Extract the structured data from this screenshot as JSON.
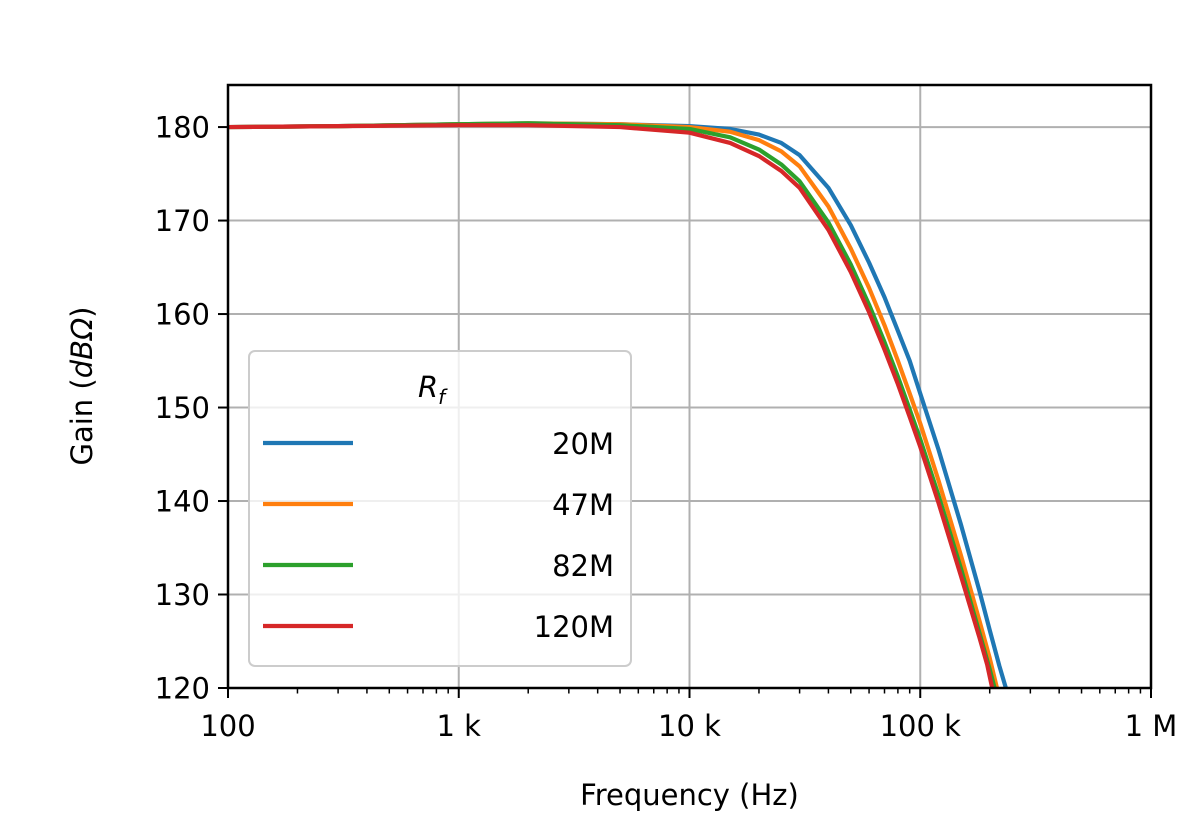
{
  "chart_data": {
    "type": "line",
    "xlabel": "Frequency (Hz)",
    "ylabel_prefix": "Gain (",
    "ylabel_unit": "dBΩ",
    "ylabel_suffix": ")",
    "x_scale": "log",
    "xlim": [
      100,
      1000000
    ],
    "ylim": [
      120,
      184.5
    ],
    "x_ticks": [
      {
        "value": 100,
        "label": "100"
      },
      {
        "value": 1000,
        "label": "1 k"
      },
      {
        "value": 10000,
        "label": "10 k"
      },
      {
        "value": 100000,
        "label": "100 k"
      },
      {
        "value": 1000000,
        "label": "1 M"
      }
    ],
    "y_ticks": [
      120,
      130,
      140,
      150,
      160,
      170,
      180
    ],
    "grid": true,
    "legend": {
      "title_main": "R",
      "title_sub": "f",
      "placement": "lower-left"
    },
    "series": [
      {
        "name": "20M",
        "color": "#1f77b4",
        "points": [
          [
            100,
            180
          ],
          [
            300,
            180.1
          ],
          [
            1000,
            180.3
          ],
          [
            2000,
            180.4
          ],
          [
            5000,
            180.3
          ],
          [
            10000,
            180.1
          ],
          [
            15000,
            179.8
          ],
          [
            20000,
            179.2
          ],
          [
            25000,
            178.3
          ],
          [
            30000,
            177
          ],
          [
            40000,
            173.5
          ],
          [
            50000,
            169.5
          ],
          [
            60000,
            165.5
          ],
          [
            70000,
            161.8
          ],
          [
            80000,
            158.2
          ],
          [
            90000,
            155
          ],
          [
            100000,
            151.5
          ],
          [
            120000,
            145.5
          ],
          [
            150000,
            137.5
          ],
          [
            180000,
            130.5
          ],
          [
            200000,
            126.2
          ],
          [
            220000,
            122.4
          ],
          [
            235000,
            120
          ]
        ]
      },
      {
        "name": "47M",
        "color": "#ff7f0e",
        "points": [
          [
            100,
            180
          ],
          [
            300,
            180.1
          ],
          [
            1000,
            180.3
          ],
          [
            2000,
            180.4
          ],
          [
            5000,
            180.3
          ],
          [
            10000,
            180
          ],
          [
            15000,
            179.5
          ],
          [
            20000,
            178.6
          ],
          [
            25000,
            177.4
          ],
          [
            30000,
            175.8
          ],
          [
            40000,
            171.5
          ],
          [
            50000,
            167
          ],
          [
            60000,
            162.8
          ],
          [
            70000,
            158.8
          ],
          [
            80000,
            155
          ],
          [
            90000,
            151.5
          ],
          [
            100000,
            148.3
          ],
          [
            120000,
            142.2
          ],
          [
            150000,
            134.2
          ],
          [
            180000,
            127.3
          ],
          [
            200000,
            123.2
          ],
          [
            215000,
            120
          ]
        ]
      },
      {
        "name": "82M",
        "color": "#2ca02c",
        "points": [
          [
            100,
            180
          ],
          [
            300,
            180.1
          ],
          [
            1000,
            180.3
          ],
          [
            2000,
            180.4
          ],
          [
            5000,
            180.2
          ],
          [
            10000,
            179.8
          ],
          [
            15000,
            178.9
          ],
          [
            20000,
            177.6
          ],
          [
            25000,
            176
          ],
          [
            30000,
            174.2
          ],
          [
            40000,
            169.8
          ],
          [
            50000,
            165.3
          ],
          [
            60000,
            161
          ],
          [
            70000,
            157
          ],
          [
            80000,
            153.3
          ],
          [
            90000,
            149.8
          ],
          [
            100000,
            146.6
          ],
          [
            120000,
            140.6
          ],
          [
            150000,
            132.8
          ],
          [
            180000,
            126
          ],
          [
            200000,
            122
          ],
          [
            210000,
            120
          ]
        ]
      },
      {
        "name": "120M",
        "color": "#d62728",
        "points": [
          [
            100,
            180
          ],
          [
            300,
            180.1
          ],
          [
            1000,
            180.2
          ],
          [
            2000,
            180.2
          ],
          [
            5000,
            180
          ],
          [
            10000,
            179.4
          ],
          [
            15000,
            178.3
          ],
          [
            20000,
            176.9
          ],
          [
            25000,
            175.3
          ],
          [
            30000,
            173.5
          ],
          [
            40000,
            169
          ],
          [
            50000,
            164.5
          ],
          [
            60000,
            160.2
          ],
          [
            70000,
            156.2
          ],
          [
            80000,
            152.5
          ],
          [
            90000,
            149
          ],
          [
            100000,
            145.8
          ],
          [
            120000,
            139.8
          ],
          [
            150000,
            132
          ],
          [
            180000,
            125.5
          ],
          [
            195000,
            122.5
          ],
          [
            205000,
            120
          ]
        ]
      }
    ]
  }
}
